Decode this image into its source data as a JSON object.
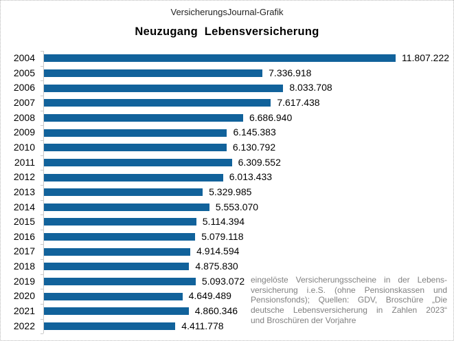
{
  "header": {
    "brand": "VersicherungsJournal-Grafik",
    "title": "Neuzugang  Lebensversicherung"
  },
  "chart_data": {
    "type": "bar",
    "orientation": "horizontal",
    "title": "Neuzugang Lebensversicherung",
    "categories": [
      "2004",
      "2005",
      "2006",
      "2007",
      "2008",
      "2009",
      "2010",
      "2011",
      "2012",
      "2013",
      "2014",
      "2015",
      "2016",
      "2017",
      "2018",
      "2019",
      "2020",
      "2021",
      "2022"
    ],
    "values": [
      11807222,
      7336918,
      8033708,
      7617438,
      6686940,
      6145383,
      6130792,
      6309552,
      6013433,
      5329985,
      5553070,
      5114394,
      5079118,
      4914594,
      4875830,
      5093072,
      4649489,
      4860346,
      4411778
    ],
    "value_labels": [
      "11.807.222",
      "7.336.918",
      "8.033.708",
      "7.617.438",
      "6.686.940",
      "6.145.383",
      "6.130.792",
      "6.309.552",
      "6.013.433",
      "5.329.985",
      "5.553.070",
      "5.114.394",
      "5.079.118",
      "4.914.594",
      "4.875.830",
      "5.093.072",
      "4.649.489",
      "4.860.346",
      "4.411.778"
    ],
    "xlim": [
      0,
      11807222
    ],
    "grid": false,
    "legend": "none",
    "data_labels": "outside-end"
  },
  "footnote": {
    "lines": [
      "eingelöste Versicherungsscheine in der Lebens-",
      "versicherung i.e.S. (ohne Pensionskassen und",
      "Pensionsfonds); Quellen: GDV, Broschüre „Die",
      "deutsche Lebensversicherung in Zahlen 2023“",
      "und Broschüren der Vorjahre"
    ]
  },
  "colors": {
    "bar": "#11629B",
    "axis": "#C9C9C9",
    "note_text": "#808080",
    "title_text": "#000000"
  }
}
